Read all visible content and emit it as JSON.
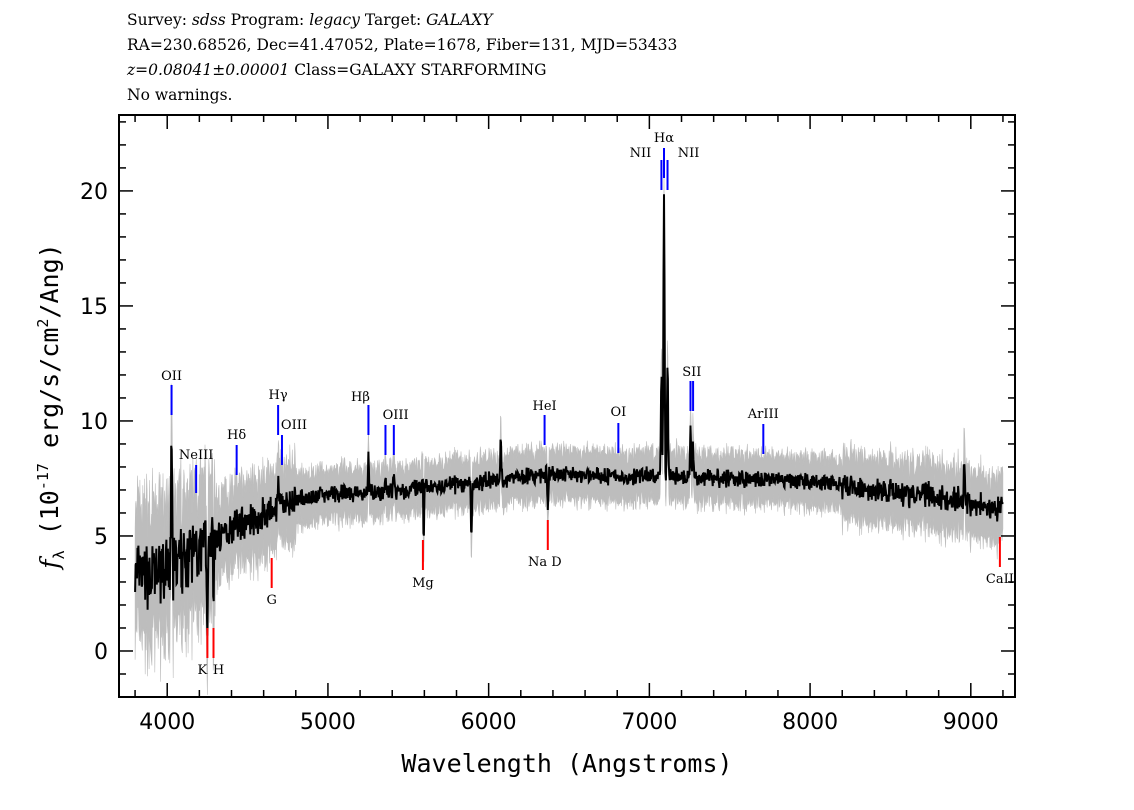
{
  "header": {
    "survey_label": "Survey:",
    "survey": "sdss",
    "program_label": "Program:",
    "program": "legacy",
    "target_label": "Target:",
    "target": "GALAXY",
    "line2": "RA=230.68526, Dec=41.47052, Plate=1678, Fiber=131, MJD=53433",
    "redshift": "z=0.08041±0.00001",
    "class": "Class=GALAXY STARFORMING",
    "warnings": "No warnings."
  },
  "chart_data": {
    "type": "line",
    "xlabel": "Wavelength (Angstroms)",
    "ylabel": "f_λ (10^-17 erg/s/cm^2/Ang)",
    "xlim": [
      3700,
      9275
    ],
    "ylim": [
      -2,
      23.3
    ],
    "xticks": [
      4000,
      5000,
      6000,
      7000,
      8000,
      9000
    ],
    "yticks": [
      0,
      5,
      10,
      15,
      20
    ],
    "grid": false,
    "colors": {
      "flux": "#000000",
      "error_band": "#bdbdbd",
      "emission": "#0000ff",
      "absorption": "#ff0000"
    },
    "continuum": {
      "x": [
        3800,
        3900,
        4000,
        4100,
        4200,
        4300,
        4400,
        4500,
        4600,
        4700,
        4800,
        5000,
        5250,
        5500,
        5750,
        6000,
        6250,
        6500,
        6750,
        7000,
        7250,
        7500,
        7750,
        8000,
        8250,
        8500,
        8750,
        9000,
        9200
      ],
      "y": [
        3.2,
        3.3,
        3.5,
        4.0,
        4.5,
        4.9,
        5.4,
        5.7,
        5.9,
        6.2,
        6.6,
        6.8,
        6.9,
        7.0,
        7.2,
        7.4,
        7.6,
        7.7,
        7.6,
        7.6,
        7.6,
        7.5,
        7.4,
        7.4,
        7.1,
        6.9,
        6.8,
        6.4,
        6.2
      ]
    },
    "features": [
      {
        "x": 4027,
        "peak": 9.7
      },
      {
        "x": 4180,
        "peak": 5.5
      },
      {
        "x": 4250,
        "peak": 1.3
      },
      {
        "x": 4288,
        "peak": 2.6
      },
      {
        "x": 4690,
        "peak": 7.3
      },
      {
        "x": 5252,
        "peak": 8.8
      },
      {
        "x": 5358,
        "peak": 7.6
      },
      {
        "x": 5410,
        "peak": 7.8
      },
      {
        "x": 5591,
        "peak": 8.2
      },
      {
        "x": 5595,
        "peak": 4.5
      },
      {
        "x": 5893,
        "peak": 4.6
      },
      {
        "x": 6075,
        "peak": 9.2
      },
      {
        "x": 6368,
        "peak": 5.8
      },
      {
        "x": 7075,
        "peak": 12.0
      },
      {
        "x": 7091,
        "peak": 19.7
      },
      {
        "x": 7113,
        "peak": 12.5
      },
      {
        "x": 7256,
        "peak": 9.9
      },
      {
        "x": 7272,
        "peak": 9.0
      },
      {
        "x": 8960,
        "peak": 8.5
      }
    ],
    "line_markers": [
      {
        "label": "OII",
        "x": [
          4027
        ],
        "type": "emission"
      },
      {
        "label": "NeIII",
        "x": [
          4180
        ],
        "type": "emission"
      },
      {
        "label": "Hδ",
        "x": [
          4432
        ],
        "type": "emission"
      },
      {
        "label": "Hγ",
        "x": [
          4690
        ],
        "type": "emission"
      },
      {
        "label": "OIII",
        "x": [
          4714
        ],
        "type": "emission"
      },
      {
        "label": "Hβ",
        "x": [
          5252
        ],
        "type": "emission"
      },
      {
        "label": "OIII",
        "x": [
          5358,
          5410
        ],
        "type": "emission"
      },
      {
        "label": "HeI",
        "x": [
          6348
        ],
        "type": "emission"
      },
      {
        "label": "OI",
        "x": [
          6807
        ],
        "type": "emission"
      },
      {
        "label": "NII",
        "x": [
          7075
        ],
        "type": "emission"
      },
      {
        "label": "Hα",
        "x": [
          7091
        ],
        "type": "emission"
      },
      {
        "label": "NII",
        "x": [
          7113
        ],
        "type": "emission"
      },
      {
        "label": "SII",
        "x": [
          7256,
          7272
        ],
        "type": "emission"
      },
      {
        "label": "ArIII",
        "x": [
          7709
        ],
        "type": "emission"
      },
      {
        "label": "K",
        "x": [
          4250
        ],
        "type": "absorption"
      },
      {
        "label": "H",
        "x": [
          4288
        ],
        "type": "absorption"
      },
      {
        "label": "G",
        "x": [
          4650
        ],
        "type": "absorption"
      },
      {
        "label": "Mg",
        "x": [
          5591
        ],
        "type": "absorption"
      },
      {
        "label": "Na D",
        "x": [
          6368
        ],
        "type": "absorption"
      },
      {
        "label": "CaII",
        "x": [
          9181
        ],
        "type": "absorption"
      }
    ]
  }
}
